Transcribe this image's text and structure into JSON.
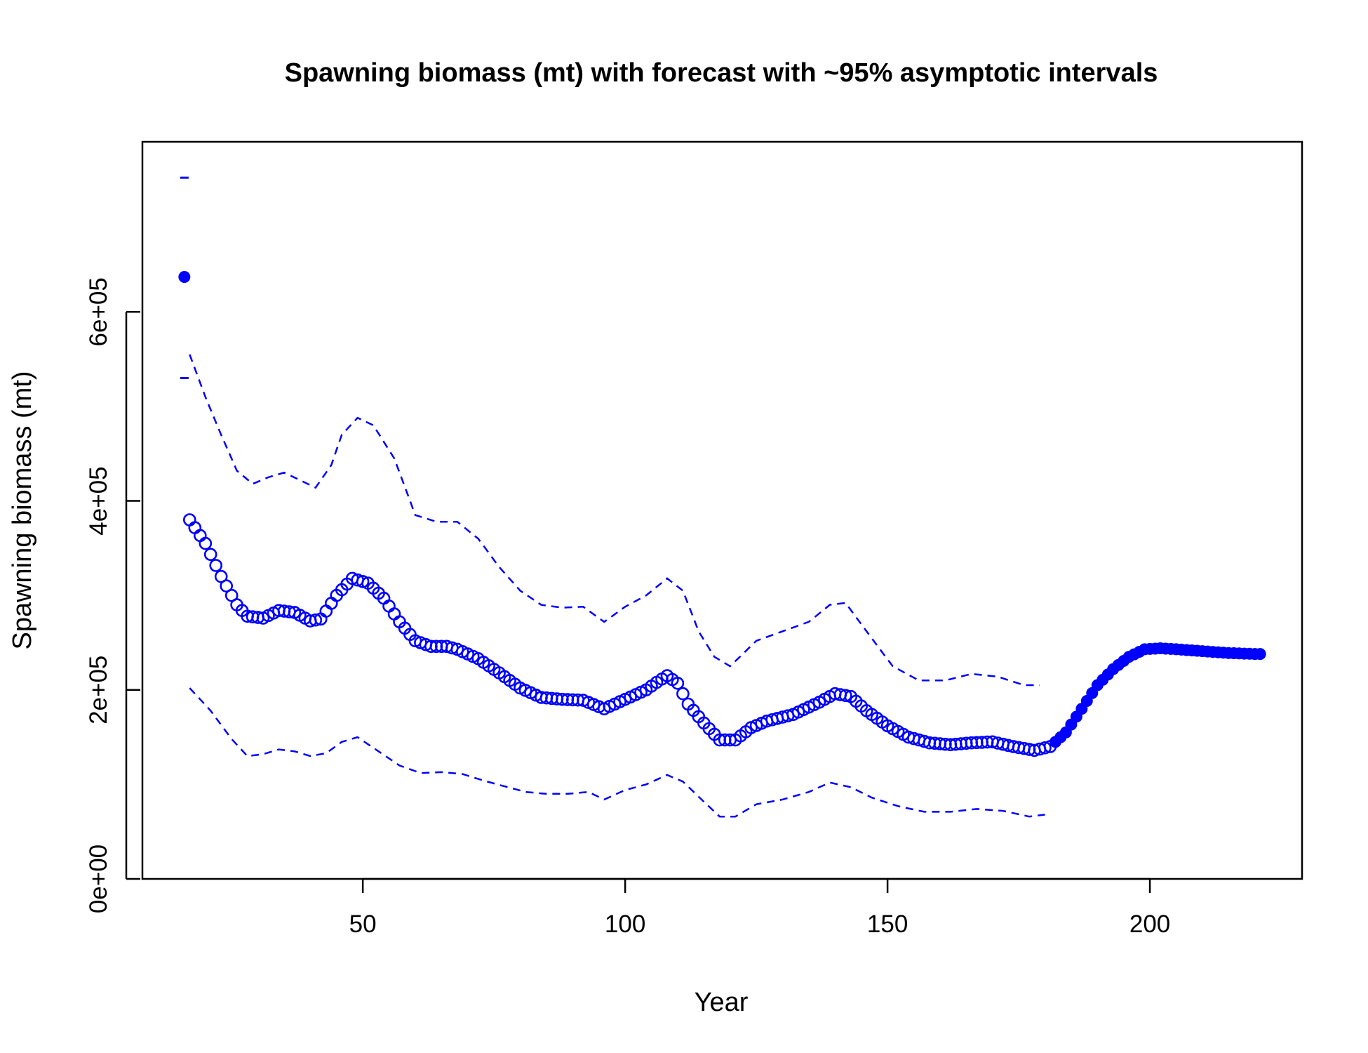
{
  "chart_data": {
    "type": "scatter",
    "title": "Spawning biomass (mt) with forecast with ~95% asymptotic intervals",
    "xlabel": "Year",
    "ylabel": "Spawning biomass (mt)",
    "xlim": [
      8,
      229
    ],
    "ylim": [
      0,
      780000
    ],
    "x_ticks": [
      50,
      100,
      150,
      200
    ],
    "x_tick_labels": [
      "50",
      "100",
      "150",
      "200"
    ],
    "y_ticks": [
      0,
      200000,
      400000,
      600000
    ],
    "y_tick_labels": [
      "0e+00",
      "2e+05",
      "4e+05",
      "6e+05"
    ],
    "colors": {
      "series": "#0000ff",
      "axis": "#000000"
    },
    "virgin": {
      "x": 16,
      "y": 637000,
      "lower": 530000,
      "upper": 742000
    },
    "historical_knots": [
      [
        17,
        380000
      ],
      [
        20,
        355000
      ],
      [
        23,
        320000
      ],
      [
        26,
        290000
      ],
      [
        28,
        278000
      ],
      [
        31,
        276000
      ],
      [
        34,
        284000
      ],
      [
        37,
        282000
      ],
      [
        40,
        273000
      ],
      [
        42,
        275000
      ],
      [
        45,
        300000
      ],
      [
        48,
        318000
      ],
      [
        51,
        313000
      ],
      [
        54,
        297000
      ],
      [
        57,
        272000
      ],
      [
        60,
        252000
      ],
      [
        63,
        246000
      ],
      [
        66,
        246000
      ],
      [
        68,
        243000
      ],
      [
        72,
        233000
      ],
      [
        76,
        218000
      ],
      [
        80,
        202000
      ],
      [
        84,
        192000
      ],
      [
        88,
        190000
      ],
      [
        92,
        189000
      ],
      [
        96,
        180000
      ],
      [
        100,
        190000
      ],
      [
        104,
        200000
      ],
      [
        106,
        208000
      ],
      [
        108,
        215000
      ],
      [
        110,
        207000
      ],
      [
        112,
        185000
      ],
      [
        115,
        165000
      ],
      [
        118,
        147000
      ],
      [
        121,
        147000
      ],
      [
        124,
        160000
      ],
      [
        127,
        167000
      ],
      [
        132,
        174000
      ],
      [
        137,
        187000
      ],
      [
        140,
        196000
      ],
      [
        143,
        193000
      ],
      [
        146,
        178000
      ],
      [
        150,
        162000
      ],
      [
        154,
        150000
      ],
      [
        158,
        144000
      ],
      [
        162,
        142000
      ],
      [
        166,
        144000
      ],
      [
        170,
        145000
      ],
      [
        174,
        140000
      ],
      [
        178,
        136000
      ],
      [
        181,
        140000
      ]
    ],
    "forecast_knots": [
      [
        181,
        140000
      ],
      [
        184,
        155000
      ],
      [
        187,
        180000
      ],
      [
        190,
        205000
      ],
      [
        193,
        222000
      ],
      [
        196,
        235000
      ],
      [
        199,
        243000
      ],
      [
        202,
        244000
      ],
      [
        205,
        243000
      ],
      [
        210,
        241000
      ],
      [
        215,
        239000
      ],
      [
        220,
        238000
      ],
      [
        221,
        238000
      ]
    ],
    "upper_bound_knots": [
      [
        17,
        555000
      ],
      [
        20,
        510000
      ],
      [
        23,
        470000
      ],
      [
        26,
        432000
      ],
      [
        29,
        418000
      ],
      [
        32,
        425000
      ],
      [
        35,
        430000
      ],
      [
        38,
        422000
      ],
      [
        41,
        414000
      ],
      [
        44,
        438000
      ],
      [
        46,
        470000
      ],
      [
        49,
        488000
      ],
      [
        52,
        480000
      ],
      [
        56,
        445000
      ],
      [
        60,
        385000
      ],
      [
        64,
        378000
      ],
      [
        68,
        378000
      ],
      [
        72,
        360000
      ],
      [
        76,
        330000
      ],
      [
        80,
        305000
      ],
      [
        84,
        290000
      ],
      [
        88,
        287000
      ],
      [
        92,
        288000
      ],
      [
        96,
        272000
      ],
      [
        100,
        288000
      ],
      [
        104,
        300000
      ],
      [
        108,
        318000
      ],
      [
        111,
        305000
      ],
      [
        114,
        262000
      ],
      [
        117,
        235000
      ],
      [
        120,
        225000
      ],
      [
        125,
        252000
      ],
      [
        130,
        262000
      ],
      [
        135,
        272000
      ],
      [
        139,
        290000
      ],
      [
        142,
        292000
      ],
      [
        146,
        262000
      ],
      [
        151,
        225000
      ],
      [
        156,
        210000
      ],
      [
        161,
        210000
      ],
      [
        166,
        217000
      ],
      [
        171,
        214000
      ],
      [
        176,
        205000
      ],
      [
        179,
        205000
      ]
    ],
    "lower_bound_knots": [
      [
        17,
        202000
      ],
      [
        21,
        178000
      ],
      [
        25,
        148000
      ],
      [
        28,
        130000
      ],
      [
        31,
        132000
      ],
      [
        34,
        137000
      ],
      [
        37,
        135000
      ],
      [
        40,
        130000
      ],
      [
        43,
        133000
      ],
      [
        46,
        145000
      ],
      [
        49,
        150000
      ],
      [
        53,
        135000
      ],
      [
        57,
        120000
      ],
      [
        61,
        112000
      ],
      [
        65,
        113000
      ],
      [
        69,
        111000
      ],
      [
        73,
        104000
      ],
      [
        77,
        98000
      ],
      [
        81,
        92000
      ],
      [
        85,
        90000
      ],
      [
        89,
        90000
      ],
      [
        93,
        92000
      ],
      [
        96,
        84000
      ],
      [
        100,
        94000
      ],
      [
        104,
        100000
      ],
      [
        108,
        110000
      ],
      [
        111,
        103000
      ],
      [
        114,
        87000
      ],
      [
        118,
        66000
      ],
      [
        121,
        66000
      ],
      [
        125,
        79000
      ],
      [
        130,
        84000
      ],
      [
        135,
        92000
      ],
      [
        139,
        102000
      ],
      [
        143,
        97000
      ],
      [
        147,
        86000
      ],
      [
        152,
        77000
      ],
      [
        157,
        71000
      ],
      [
        162,
        71000
      ],
      [
        167,
        74000
      ],
      [
        172,
        72000
      ],
      [
        177,
        66000
      ],
      [
        180,
        68000
      ]
    ]
  }
}
